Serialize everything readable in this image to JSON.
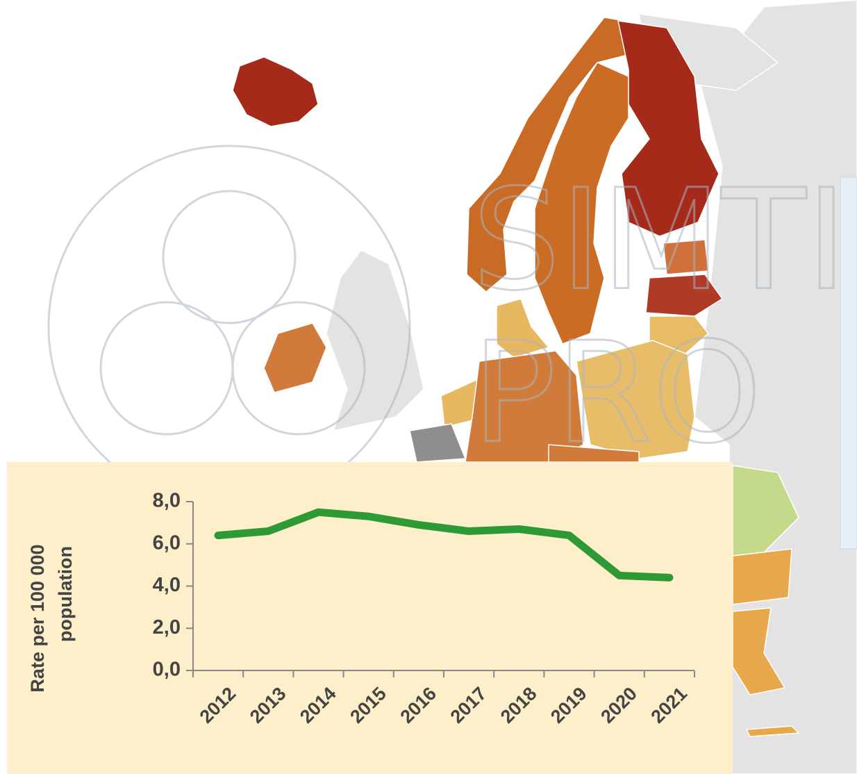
{
  "chart_data": {
    "type": "line",
    "y_label_lines": [
      "Rate per 100 000",
      "population"
    ],
    "watermark_lines": [
      "SIMTI",
      "PRO"
    ],
    "categories": [
      "2012",
      "2013",
      "2014",
      "2015",
      "2016",
      "2017",
      "2018",
      "2019",
      "2020",
      "2021"
    ],
    "series": [
      {
        "name": "Rate",
        "color": "#2e9a35",
        "values": [
          6.4,
          6.6,
          7.5,
          7.3,
          6.9,
          6.6,
          6.7,
          6.4,
          4.5,
          4.4
        ]
      }
    ],
    "ylim": [
      0,
      8
    ],
    "yticks": [
      {
        "value": 0,
        "label": "0,0"
      },
      {
        "value": 2,
        "label": "2,0"
      },
      {
        "value": 4,
        "label": "4,0"
      },
      {
        "value": 6,
        "label": "6,0"
      },
      {
        "value": 8,
        "label": "8,0"
      }
    ],
    "grid": false
  }
}
